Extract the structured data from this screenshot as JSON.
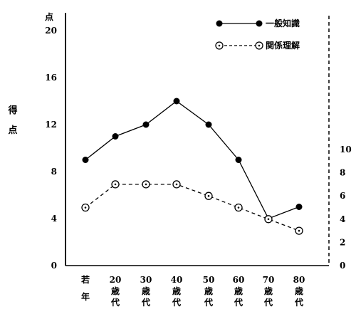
{
  "chart_data": {
    "type": "line",
    "y_unit_label": "点",
    "ylabel": "得点",
    "y_left_ticks": [
      "0",
      "4",
      "8",
      "12",
      "16",
      "20"
    ],
    "y_left_range": [
      0,
      20
    ],
    "y_right_ticks": [
      "0",
      "2",
      "4",
      "6",
      "8",
      "10"
    ],
    "y_right_range": [
      0,
      13
    ],
    "categories": [
      {
        "lines": [
          "若",
          "年"
        ]
      },
      {
        "lines": [
          "20",
          "歳",
          "代"
        ]
      },
      {
        "lines": [
          "30",
          "歳",
          "代"
        ]
      },
      {
        "lines": [
          "40",
          "歳",
          "代"
        ]
      },
      {
        "lines": [
          "50",
          "歳",
          "代"
        ]
      },
      {
        "lines": [
          "60",
          "歳",
          "代"
        ]
      },
      {
        "lines": [
          "70",
          "歳",
          "代"
        ]
      },
      {
        "lines": [
          "80",
          "歳",
          "代"
        ]
      }
    ],
    "series": [
      {
        "name": "一般知識",
        "axis": "left",
        "style": "solid-filled",
        "color": "#000000",
        "values": [
          9,
          11,
          12,
          14,
          12,
          9,
          4,
          5
        ]
      },
      {
        "name": "関係理解",
        "axis": "right",
        "style": "dashed-open",
        "color": "#000000",
        "values": [
          5,
          7,
          7,
          7,
          6,
          5,
          4,
          3
        ]
      }
    ],
    "grid": false,
    "legend_position": "top-right"
  }
}
